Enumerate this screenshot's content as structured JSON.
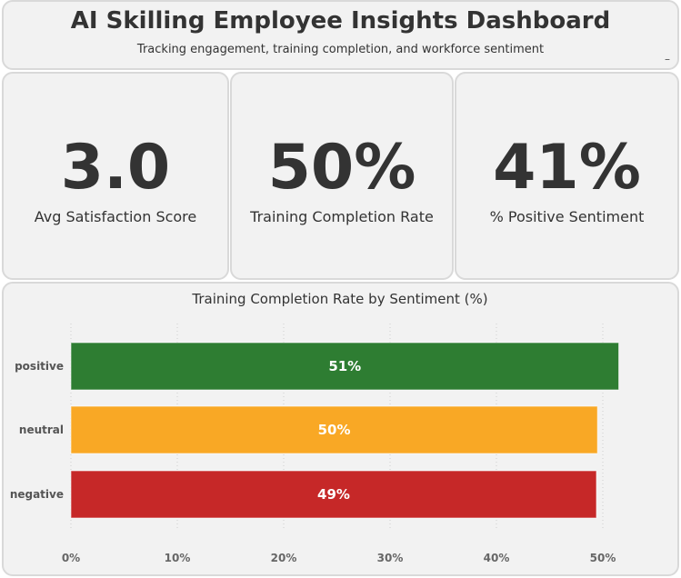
{
  "header": {
    "title": "AI Skilling Employee Insights Dashboard",
    "subtitle": "Tracking engagement, training completion, and workforce sentiment",
    "minimize_glyph": "–"
  },
  "kpis": [
    {
      "value": "3.0",
      "label": "Avg Satisfaction Score"
    },
    {
      "value": "50%",
      "label": "Training Completion Rate"
    },
    {
      "value": "41%",
      "label": "% Positive Sentiment"
    }
  ],
  "chart_data": {
    "type": "bar",
    "orientation": "horizontal",
    "title": "Training Completion Rate by Sentiment (%)",
    "categories": [
      "positive",
      "neutral",
      "negative"
    ],
    "values": [
      51.5,
      49.5,
      49.4
    ],
    "data_labels": [
      "51%",
      "50%",
      "49%"
    ],
    "colors": [
      "#2e7d32",
      "#f9a825",
      "#c62828"
    ],
    "xlim": [
      0,
      56
    ],
    "x_ticks": [
      0,
      10,
      20,
      30,
      40,
      50
    ],
    "x_tick_labels": [
      "0%",
      "10%",
      "20%",
      "30%",
      "40%",
      "50%"
    ],
    "grid": "vertical-dotted"
  }
}
